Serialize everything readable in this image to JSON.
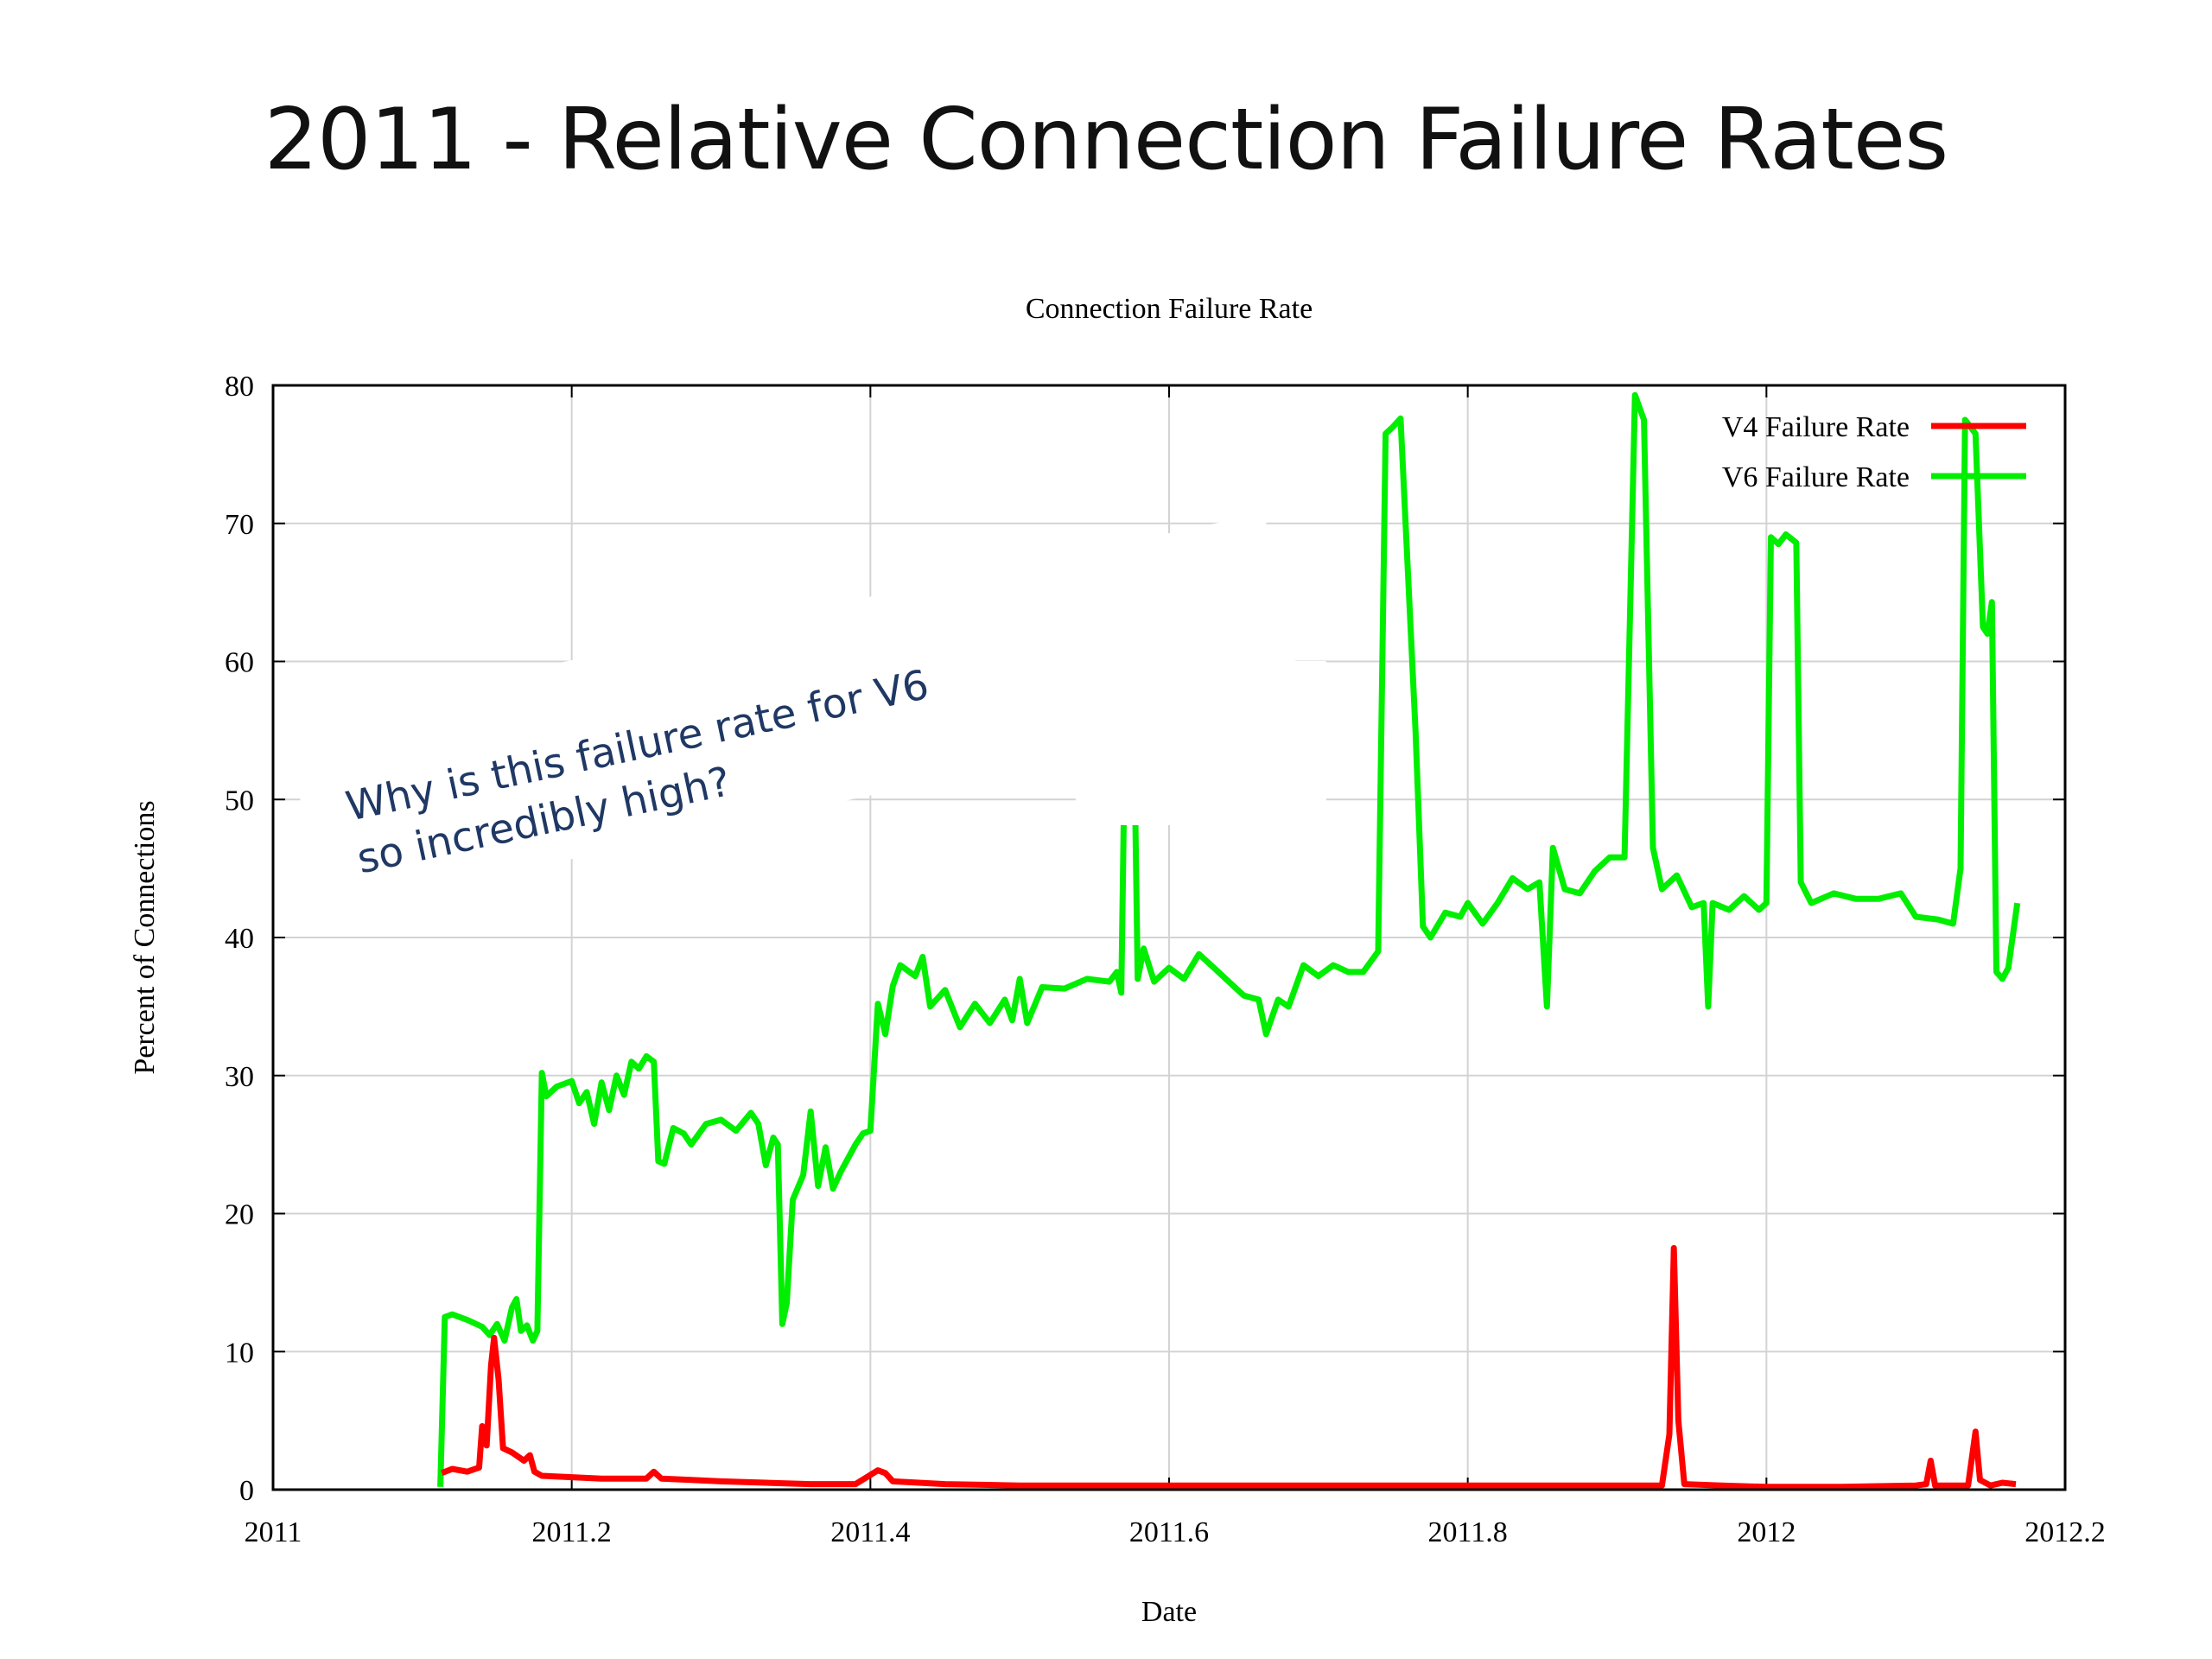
{
  "slide_title": "2011 - Relative Connection Failure Rates",
  "annotation": {
    "line1": "Why is this failure rate for V6",
    "line2": "so incredibly high?",
    "color": "#1f3864"
  },
  "chart_data": {
    "type": "line",
    "title": "Connection Failure Rate",
    "xlabel": "Date",
    "ylabel": "Percent of Connections",
    "xlim": [
      2011,
      2012.2
    ],
    "ylim": [
      0,
      80
    ],
    "xticks": [
      2011,
      2011.2,
      2011.4,
      2011.6,
      2011.8,
      2012,
      2012.2
    ],
    "xtick_labels": [
      "2011",
      "2011.2",
      "2011.4",
      "2011.6",
      "2011.8",
      "2012",
      "2012.2"
    ],
    "yticks": [
      0,
      10,
      20,
      30,
      40,
      50,
      60,
      70,
      80
    ],
    "ytick_labels": [
      "0",
      "10",
      "20",
      "30",
      "40",
      "50",
      "60",
      "70",
      "80"
    ],
    "grid": true,
    "legend_position": "top-right",
    "series": [
      {
        "name": "V4 Failure Rate",
        "color": "#ff0000",
        "points": [
          [
            2011.113,
            1.2
          ],
          [
            2011.12,
            1.5
          ],
          [
            2011.13,
            1.3
          ],
          [
            2011.138,
            1.6
          ],
          [
            2011.14,
            4.6
          ],
          [
            2011.143,
            3.2
          ],
          [
            2011.146,
            9.0
          ],
          [
            2011.148,
            11.0
          ],
          [
            2011.151,
            8.0
          ],
          [
            2011.154,
            3.0
          ],
          [
            2011.16,
            2.7
          ],
          [
            2011.168,
            2.1
          ],
          [
            2011.172,
            2.5
          ],
          [
            2011.175,
            1.3
          ],
          [
            2011.18,
            1.0
          ],
          [
            2011.2,
            0.9
          ],
          [
            2011.22,
            0.8
          ],
          [
            2011.25,
            0.8
          ],
          [
            2011.255,
            1.3
          ],
          [
            2011.26,
            0.8
          ],
          [
            2011.28,
            0.7
          ],
          [
            2011.3,
            0.6
          ],
          [
            2011.33,
            0.5
          ],
          [
            2011.36,
            0.4
          ],
          [
            2011.39,
            0.4
          ],
          [
            2011.405,
            1.4
          ],
          [
            2011.41,
            1.2
          ],
          [
            2011.415,
            0.6
          ],
          [
            2011.45,
            0.4
          ],
          [
            2011.5,
            0.3
          ],
          [
            2011.55,
            0.3
          ],
          [
            2011.6,
            0.3
          ],
          [
            2011.65,
            0.3
          ],
          [
            2011.7,
            0.3
          ],
          [
            2011.75,
            0.3
          ],
          [
            2011.8,
            0.3
          ],
          [
            2011.85,
            0.3
          ],
          [
            2011.9,
            0.3
          ],
          [
            2011.93,
            0.3
          ],
          [
            2011.935,
            4.0
          ],
          [
            2011.938,
            17.5
          ],
          [
            2011.941,
            5.0
          ],
          [
            2011.945,
            0.4
          ],
          [
            2011.97,
            0.3
          ],
          [
            2012.0,
            0.2
          ],
          [
            2012.05,
            0.2
          ],
          [
            2012.1,
            0.3
          ],
          [
            2012.107,
            0.4
          ],
          [
            2012.11,
            2.1
          ],
          [
            2012.113,
            0.3
          ],
          [
            2012.135,
            0.3
          ],
          [
            2012.14,
            4.2
          ],
          [
            2012.143,
            0.7
          ],
          [
            2012.15,
            0.3
          ],
          [
            2012.158,
            0.5
          ],
          [
            2012.167,
            0.4
          ]
        ]
      },
      {
        "name": "V6 Failure Rate",
        "color": "#00ee00",
        "points": [
          [
            2011.112,
            0.2
          ],
          [
            2011.115,
            12.5
          ],
          [
            2011.12,
            12.7
          ],
          [
            2011.13,
            12.3
          ],
          [
            2011.14,
            11.8
          ],
          [
            2011.145,
            11.2
          ],
          [
            2011.15,
            12.0
          ],
          [
            2011.155,
            10.8
          ],
          [
            2011.16,
            13.2
          ],
          [
            2011.163,
            13.8
          ],
          [
            2011.166,
            11.5
          ],
          [
            2011.17,
            11.9
          ],
          [
            2011.174,
            10.8
          ],
          [
            2011.177,
            11.5
          ],
          [
            2011.18,
            30.2
          ],
          [
            2011.183,
            28.5
          ],
          [
            2011.19,
            29.2
          ],
          [
            2011.2,
            29.6
          ],
          [
            2011.205,
            28.0
          ],
          [
            2011.21,
            28.8
          ],
          [
            2011.215,
            26.5
          ],
          [
            2011.22,
            29.5
          ],
          [
            2011.225,
            27.5
          ],
          [
            2011.23,
            30.0
          ],
          [
            2011.235,
            28.6
          ],
          [
            2011.24,
            31.0
          ],
          [
            2011.245,
            30.5
          ],
          [
            2011.25,
            31.4
          ],
          [
            2011.255,
            31.0
          ],
          [
            2011.258,
            23.8
          ],
          [
            2011.262,
            23.6
          ],
          [
            2011.268,
            26.2
          ],
          [
            2011.275,
            25.8
          ],
          [
            2011.28,
            25.0
          ],
          [
            2011.29,
            26.5
          ],
          [
            2011.3,
            26.8
          ],
          [
            2011.31,
            26.0
          ],
          [
            2011.32,
            27.3
          ],
          [
            2011.325,
            26.5
          ],
          [
            2011.33,
            23.5
          ],
          [
            2011.335,
            25.5
          ],
          [
            2011.338,
            25.0
          ],
          [
            2011.341,
            12.0
          ],
          [
            2011.344,
            13.5
          ],
          [
            2011.348,
            21.0
          ],
          [
            2011.355,
            22.8
          ],
          [
            2011.36,
            27.4
          ],
          [
            2011.365,
            22.0
          ],
          [
            2011.37,
            24.8
          ],
          [
            2011.375,
            21.8
          ],
          [
            2011.38,
            23.0
          ],
          [
            2011.39,
            25.0
          ],
          [
            2011.395,
            25.8
          ],
          [
            2011.4,
            26.0
          ],
          [
            2011.405,
            35.2
          ],
          [
            2011.41,
            33.0
          ],
          [
            2011.415,
            36.5
          ],
          [
            2011.42,
            38.0
          ],
          [
            2011.43,
            37.2
          ],
          [
            2011.435,
            38.6
          ],
          [
            2011.44,
            35.0
          ],
          [
            2011.45,
            36.2
          ],
          [
            2011.46,
            33.5
          ],
          [
            2011.47,
            35.2
          ],
          [
            2011.48,
            33.8
          ],
          [
            2011.49,
            35.5
          ],
          [
            2011.495,
            34.0
          ],
          [
            2011.5,
            37.0
          ],
          [
            2011.505,
            33.8
          ],
          [
            2011.515,
            36.4
          ],
          [
            2011.53,
            36.3
          ],
          [
            2011.545,
            37.0
          ],
          [
            2011.56,
            36.8
          ],
          [
            2011.565,
            37.5
          ],
          [
            2011.568,
            36.0
          ],
          [
            2011.571,
            59.0
          ],
          [
            2011.573,
            64.3
          ],
          [
            2011.576,
            59.0
          ],
          [
            2011.579,
            37.0
          ],
          [
            2011.583,
            39.2
          ],
          [
            2011.59,
            36.8
          ],
          [
            2011.6,
            37.8
          ],
          [
            2011.61,
            37.0
          ],
          [
            2011.62,
            38.8
          ],
          [
            2011.63,
            37.8
          ],
          [
            2011.64,
            36.8
          ],
          [
            2011.65,
            35.8
          ],
          [
            2011.66,
            35.5
          ],
          [
            2011.665,
            33.0
          ],
          [
            2011.673,
            35.5
          ],
          [
            2011.68,
            35.0
          ],
          [
            2011.69,
            38.0
          ],
          [
            2011.7,
            37.2
          ],
          [
            2011.71,
            38.0
          ],
          [
            2011.72,
            37.5
          ],
          [
            2011.73,
            37.5
          ],
          [
            2011.74,
            39.0
          ],
          [
            2011.745,
            76.5
          ],
          [
            2011.75,
            77.0
          ],
          [
            2011.755,
            77.6
          ],
          [
            2011.765,
            55.0
          ],
          [
            2011.77,
            40.8
          ],
          [
            2011.775,
            40.0
          ],
          [
            2011.785,
            41.8
          ],
          [
            2011.795,
            41.5
          ],
          [
            2011.8,
            42.5
          ],
          [
            2011.81,
            41.0
          ],
          [
            2011.82,
            42.5
          ],
          [
            2011.83,
            44.3
          ],
          [
            2011.84,
            43.5
          ],
          [
            2011.848,
            44.0
          ],
          [
            2011.853,
            35.0
          ],
          [
            2011.857,
            46.5
          ],
          [
            2011.865,
            43.5
          ],
          [
            2011.875,
            43.2
          ],
          [
            2011.885,
            44.8
          ],
          [
            2011.895,
            45.8
          ],
          [
            2011.905,
            45.8
          ],
          [
            2011.912,
            79.3
          ],
          [
            2011.918,
            77.5
          ],
          [
            2011.924,
            46.5
          ],
          [
            2011.93,
            43.5
          ],
          [
            2011.94,
            44.5
          ],
          [
            2011.95,
            42.2
          ],
          [
            2011.958,
            42.5
          ],
          [
            2011.961,
            35.0
          ],
          [
            2011.964,
            42.5
          ],
          [
            2011.975,
            42.0
          ],
          [
            2011.985,
            43.0
          ],
          [
            2011.995,
            42.0
          ],
          [
            2012.0,
            42.5
          ],
          [
            2012.003,
            69.0
          ],
          [
            2012.008,
            68.5
          ],
          [
            2012.013,
            69.2
          ],
          [
            2012.02,
            68.6
          ],
          [
            2012.023,
            44.0
          ],
          [
            2012.03,
            42.5
          ],
          [
            2012.045,
            43.2
          ],
          [
            2012.06,
            42.8
          ],
          [
            2012.075,
            42.8
          ],
          [
            2012.09,
            43.2
          ],
          [
            2012.1,
            41.5
          ],
          [
            2012.115,
            41.3
          ],
          [
            2012.125,
            41.0
          ],
          [
            2012.13,
            45.0
          ],
          [
            2012.133,
            77.5
          ],
          [
            2012.14,
            76.5
          ],
          [
            2012.145,
            62.5
          ],
          [
            2012.148,
            62.0
          ],
          [
            2012.151,
            64.3
          ],
          [
            2012.154,
            37.5
          ],
          [
            2012.158,
            37.0
          ],
          [
            2012.162,
            37.8
          ],
          [
            2012.168,
            42.5
          ]
        ]
      }
    ]
  }
}
